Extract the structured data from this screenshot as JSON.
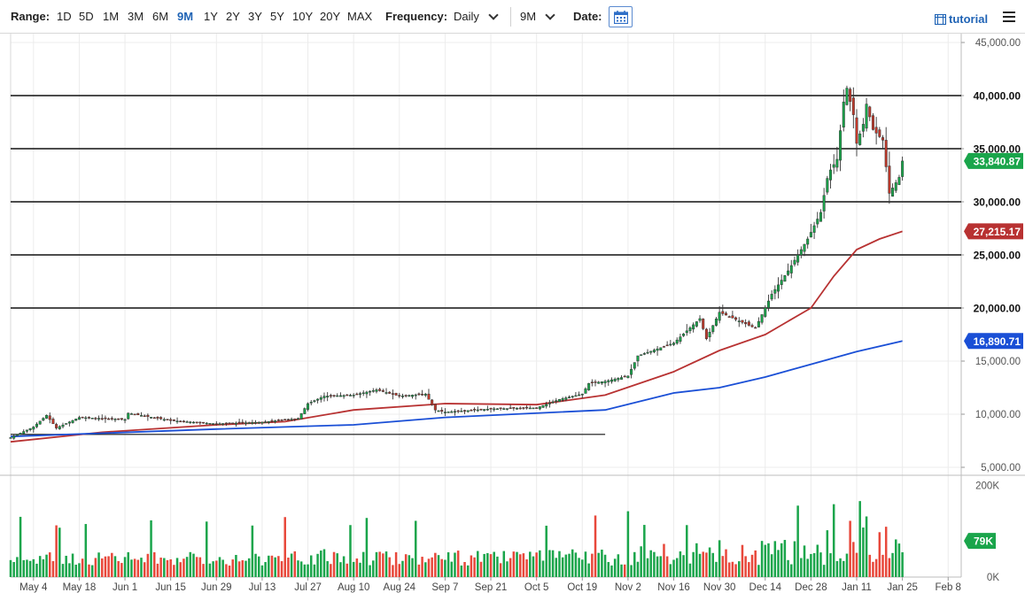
{
  "toolbar": {
    "range_label": "Range:",
    "ranges": [
      "1D",
      "5D",
      "1M",
      "3M",
      "6M",
      "9M",
      "1Y",
      "2Y",
      "3Y",
      "5Y",
      "10Y",
      "20Y",
      "MAX"
    ],
    "active_range": "9M",
    "frequency_label": "Frequency:",
    "frequency_value": "Daily",
    "period_value": "9M",
    "date_label": "Date:",
    "tutorial_label": "tutorial",
    "icons": [
      "calendar-icon",
      "tutorial-icon",
      "menu-icon"
    ]
  },
  "chart_data": {
    "type": "candlestick",
    "price_axis": {
      "ylim": [
        5000,
        45000
      ],
      "ticks": [
        5000,
        10000,
        15000,
        20000,
        25000,
        30000,
        35000,
        40000,
        45000
      ],
      "tick_labels": [
        "5,000.00",
        "10,000.00",
        "15,000.00",
        "20,000.00",
        "25,000.00",
        "30,000.00",
        "35,000.00",
        "40,000.00",
        "45,000.00"
      ]
    },
    "horizontal_levels": [
      {
        "value": 40000,
        "label": "40,000.00"
      },
      {
        "value": 35000,
        "label": "35,000.00"
      },
      {
        "value": 30000,
        "label": "30,000.00"
      },
      {
        "value": 25000,
        "label": "25,000.00"
      },
      {
        "value": 20000,
        "label": "20,000.00"
      }
    ],
    "support_line": {
      "start": "2020-04-27",
      "end": "2020-10-26",
      "value": 8100
    },
    "badges": [
      {
        "value": 33840.87,
        "label": "33,840.87",
        "color": "#1aa54b"
      },
      {
        "value": 27215.17,
        "label": "27,215.17",
        "color": "#b83232"
      },
      {
        "value": 16890.71,
        "label": "16,890.71",
        "color": "#1a4fd6"
      }
    ],
    "x_axis": {
      "start": "2020-04-27",
      "end": "2021-02-12",
      "tick_labels": [
        "May 4",
        "May 18",
        "Jun 1",
        "Jun 15",
        "Jun 29",
        "Jul 13",
        "Jul 27",
        "Aug 10",
        "Aug 24",
        "Sep 7",
        "Sep 21",
        "Oct 5",
        "Oct 19",
        "Nov 2",
        "Nov 16",
        "Nov 30",
        "Dec 14",
        "Dec 28",
        "Jan 11",
        "Jan 25",
        "Feb 8"
      ],
      "tick_dates": [
        "2020-05-04",
        "2020-05-18",
        "2020-06-01",
        "2020-06-15",
        "2020-06-29",
        "2020-07-13",
        "2020-07-27",
        "2020-08-10",
        "2020-08-24",
        "2020-09-07",
        "2020-09-21",
        "2020-10-05",
        "2020-10-19",
        "2020-11-02",
        "2020-11-16",
        "2020-11-30",
        "2020-12-14",
        "2020-12-28",
        "2021-01-11",
        "2021-01-25",
        "2021-02-08"
      ]
    },
    "price_anchors": [
      [
        "2020-04-27",
        7800
      ],
      [
        "2020-05-04",
        8800
      ],
      [
        "2020-05-08",
        9900
      ],
      [
        "2020-05-11",
        8700
      ],
      [
        "2020-05-18",
        9700
      ],
      [
        "2020-06-01",
        9500
      ],
      [
        "2020-06-02",
        10100
      ],
      [
        "2020-06-15",
        9400
      ],
      [
        "2020-06-29",
        9100
      ],
      [
        "2020-07-13",
        9250
      ],
      [
        "2020-07-24",
        9600
      ],
      [
        "2020-07-27",
        11000
      ],
      [
        "2020-08-01",
        11700
      ],
      [
        "2020-08-10",
        11800
      ],
      [
        "2020-08-17",
        12300
      ],
      [
        "2020-08-24",
        11700
      ],
      [
        "2020-09-01",
        11900
      ],
      [
        "2020-09-04",
        10400
      ],
      [
        "2020-09-07",
        10200
      ],
      [
        "2020-09-21",
        10500
      ],
      [
        "2020-10-05",
        10600
      ],
      [
        "2020-10-12",
        11400
      ],
      [
        "2020-10-19",
        11900
      ],
      [
        "2020-10-21",
        12900
      ],
      [
        "2020-10-26",
        13100
      ],
      [
        "2020-11-02",
        13600
      ],
      [
        "2020-11-05",
        15500
      ],
      [
        "2020-11-16",
        16700
      ],
      [
        "2020-11-24",
        19000
      ],
      [
        "2020-11-26",
        17100
      ],
      [
        "2020-11-30",
        19600
      ],
      [
        "2020-12-11",
        18100
      ],
      [
        "2020-12-16",
        21300
      ],
      [
        "2020-12-21",
        23500
      ],
      [
        "2020-12-27",
        26500
      ],
      [
        "2020-12-31",
        29000
      ],
      [
        "2021-01-02",
        32200
      ],
      [
        "2021-01-03",
        33000
      ],
      [
        "2021-01-05",
        34000
      ],
      [
        "2021-01-07",
        39400
      ],
      [
        "2021-01-08",
        40700
      ],
      [
        "2021-01-10",
        38200
      ],
      [
        "2021-01-11",
        35500
      ],
      [
        "2021-01-13",
        37300
      ],
      [
        "2021-01-14",
        39200
      ],
      [
        "2021-01-16",
        36800
      ],
      [
        "2021-01-19",
        35800
      ],
      [
        "2021-01-21",
        30800
      ],
      [
        "2021-01-24",
        32300
      ],
      [
        "2021-01-25",
        33840
      ]
    ],
    "series": [
      {
        "kind": "moving-average",
        "color": "#b83232",
        "points": [
          [
            "2020-04-27",
            7400
          ],
          [
            "2020-05-25",
            8300
          ],
          [
            "2020-06-29",
            9000
          ],
          [
            "2020-07-20",
            9300
          ],
          [
            "2020-08-10",
            10400
          ],
          [
            "2020-09-07",
            11000
          ],
          [
            "2020-10-05",
            10900
          ],
          [
            "2020-10-26",
            11800
          ],
          [
            "2020-11-16",
            14000
          ],
          [
            "2020-11-30",
            16000
          ],
          [
            "2020-12-14",
            17500
          ],
          [
            "2020-12-28",
            20000
          ],
          [
            "2021-01-04",
            23000
          ],
          [
            "2021-01-11",
            25500
          ],
          [
            "2021-01-18",
            26500
          ],
          [
            "2021-01-25",
            27215
          ]
        ]
      },
      {
        "kind": "moving-average",
        "color": "#1a4fd6",
        "points": [
          [
            "2020-04-27",
            7900
          ],
          [
            "2020-06-29",
            8600
          ],
          [
            "2020-08-10",
            9000
          ],
          [
            "2020-09-07",
            9700
          ],
          [
            "2020-10-26",
            10400
          ],
          [
            "2020-11-16",
            12000
          ],
          [
            "2020-11-30",
            12500
          ],
          [
            "2020-12-14",
            13500
          ],
          [
            "2020-12-28",
            14700
          ],
          [
            "2021-01-11",
            15900
          ],
          [
            "2021-01-25",
            16890
          ]
        ]
      }
    ],
    "volume": {
      "ylim": [
        0,
        220000
      ],
      "tick_labels": [
        "0K",
        "200K"
      ],
      "ticks": [
        0,
        200000
      ],
      "last": {
        "value": 79000,
        "label": "79K",
        "color": "#1aa54b"
      },
      "up_color": "#1aa54b",
      "down_color": "#e8483b"
    },
    "candle_up_color": "#1aa54b",
    "candle_down_color": "#c0392b",
    "grid": true
  }
}
